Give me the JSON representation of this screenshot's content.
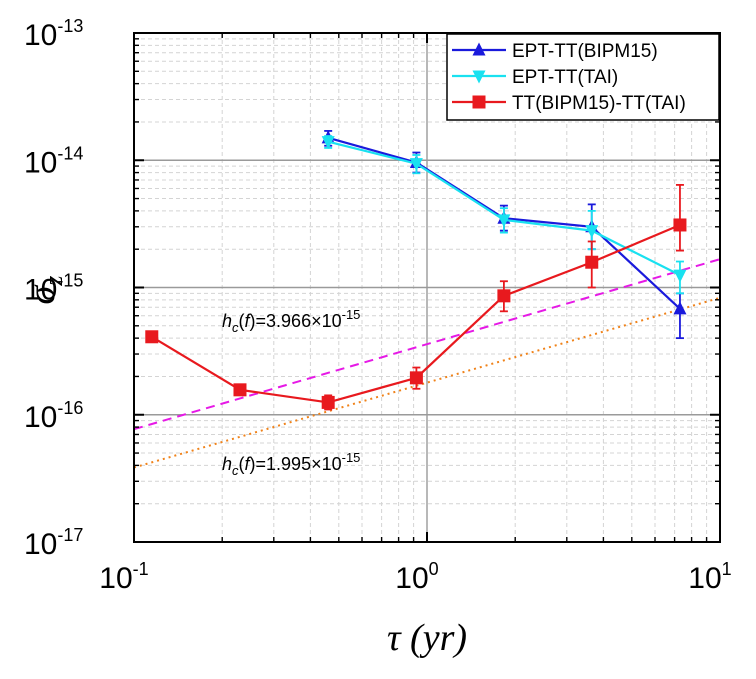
{
  "chart_data": {
    "type": "line",
    "title": "",
    "xlabel": "τ (yr)",
    "ylabel": "σz",
    "xscale": "log",
    "yscale": "log",
    "xlim": [
      0.1,
      10
    ],
    "ylim": [
      1e-17,
      1e-13
    ],
    "grid": true,
    "legend_position": "top-right",
    "x_ticks": [
      {
        "base": "10",
        "exp": "-1"
      },
      {
        "base": "10",
        "exp": "0"
      },
      {
        "base": "10",
        "exp": "1"
      }
    ],
    "y_ticks": [
      {
        "base": "10",
        "exp": "-17"
      },
      {
        "base": "10",
        "exp": "-16"
      },
      {
        "base": "10",
        "exp": "-15"
      },
      {
        "base": "10",
        "exp": "-14"
      },
      {
        "base": "10",
        "exp": "-13"
      }
    ],
    "series": [
      {
        "name": "EPT-TT(BIPM15)",
        "color": "#1a1adc",
        "marker": "triangle-up",
        "x": [
          0.46,
          0.92,
          1.83,
          3.65,
          7.3
        ],
        "y": [
          1.5e-14,
          9.6e-15,
          3.5e-15,
          3e-15,
          6.8e-16
        ],
        "yerr_low": [
          1.3e-14,
          8e-15,
          2.8e-15,
          2e-15,
          4e-16
        ],
        "yerr_high": [
          1.7e-14,
          1.15e-14,
          4.4e-15,
          4.5e-15,
          9e-16
        ]
      },
      {
        "name": "EPT-TT(TAI)",
        "color": "#19e1f0",
        "marker": "triangle-down",
        "x": [
          0.46,
          0.92,
          1.83,
          3.65,
          7.3
        ],
        "y": [
          1.4e-14,
          9.4e-15,
          3.4e-15,
          2.8e-15,
          1.25e-15
        ],
        "yerr_low": [
          1.25e-14,
          7.9e-15,
          2.7e-15,
          2e-15,
          9e-16
        ],
        "yerr_high": [
          1.55e-14,
          1.1e-14,
          4.2e-15,
          4e-15,
          1.6e-15
        ]
      },
      {
        "name": "TT(BIPM15)-TT(TAI)",
        "color": "#e8191e",
        "marker": "square",
        "x": [
          0.115,
          0.23,
          0.46,
          0.92,
          1.83,
          3.65,
          7.3
        ],
        "y": [
          4.1e-16,
          1.57e-16,
          1.25e-16,
          1.95e-16,
          8.6e-16,
          1.58e-15,
          3.1e-15
        ],
        "yerr_low": [
          4.1e-16,
          1.57e-16,
          1.1e-16,
          1.6e-16,
          6.5e-16,
          1e-15,
          1.95e-15
        ],
        "yerr_high": [
          4.1e-16,
          1.57e-16,
          1.42e-16,
          2.35e-16,
          1.12e-15,
          2.3e-15,
          6.4e-15
        ]
      }
    ],
    "reference_lines": [
      {
        "name": "",
        "style": "dashed",
        "color": "#e619e6",
        "x": [
          0.1,
          10
        ],
        "y": [
          7.7e-17,
          1.67e-15
        ],
        "label_prefix": "h",
        "label_sub": "c",
        "label_mid": "(",
        "label_f": "f",
        "label_close": ")=3.966×10",
        "label_exp": "-15"
      },
      {
        "name": "",
        "style": "dotted",
        "color": "#f08219",
        "x": [
          0.1,
          10
        ],
        "y": [
          3.85e-17,
          8.3e-16
        ],
        "label_prefix": "h",
        "label_sub": "c",
        "label_mid": "(",
        "label_f": "f",
        "label_close": ")=1.995×10",
        "label_exp": "-15"
      }
    ]
  }
}
